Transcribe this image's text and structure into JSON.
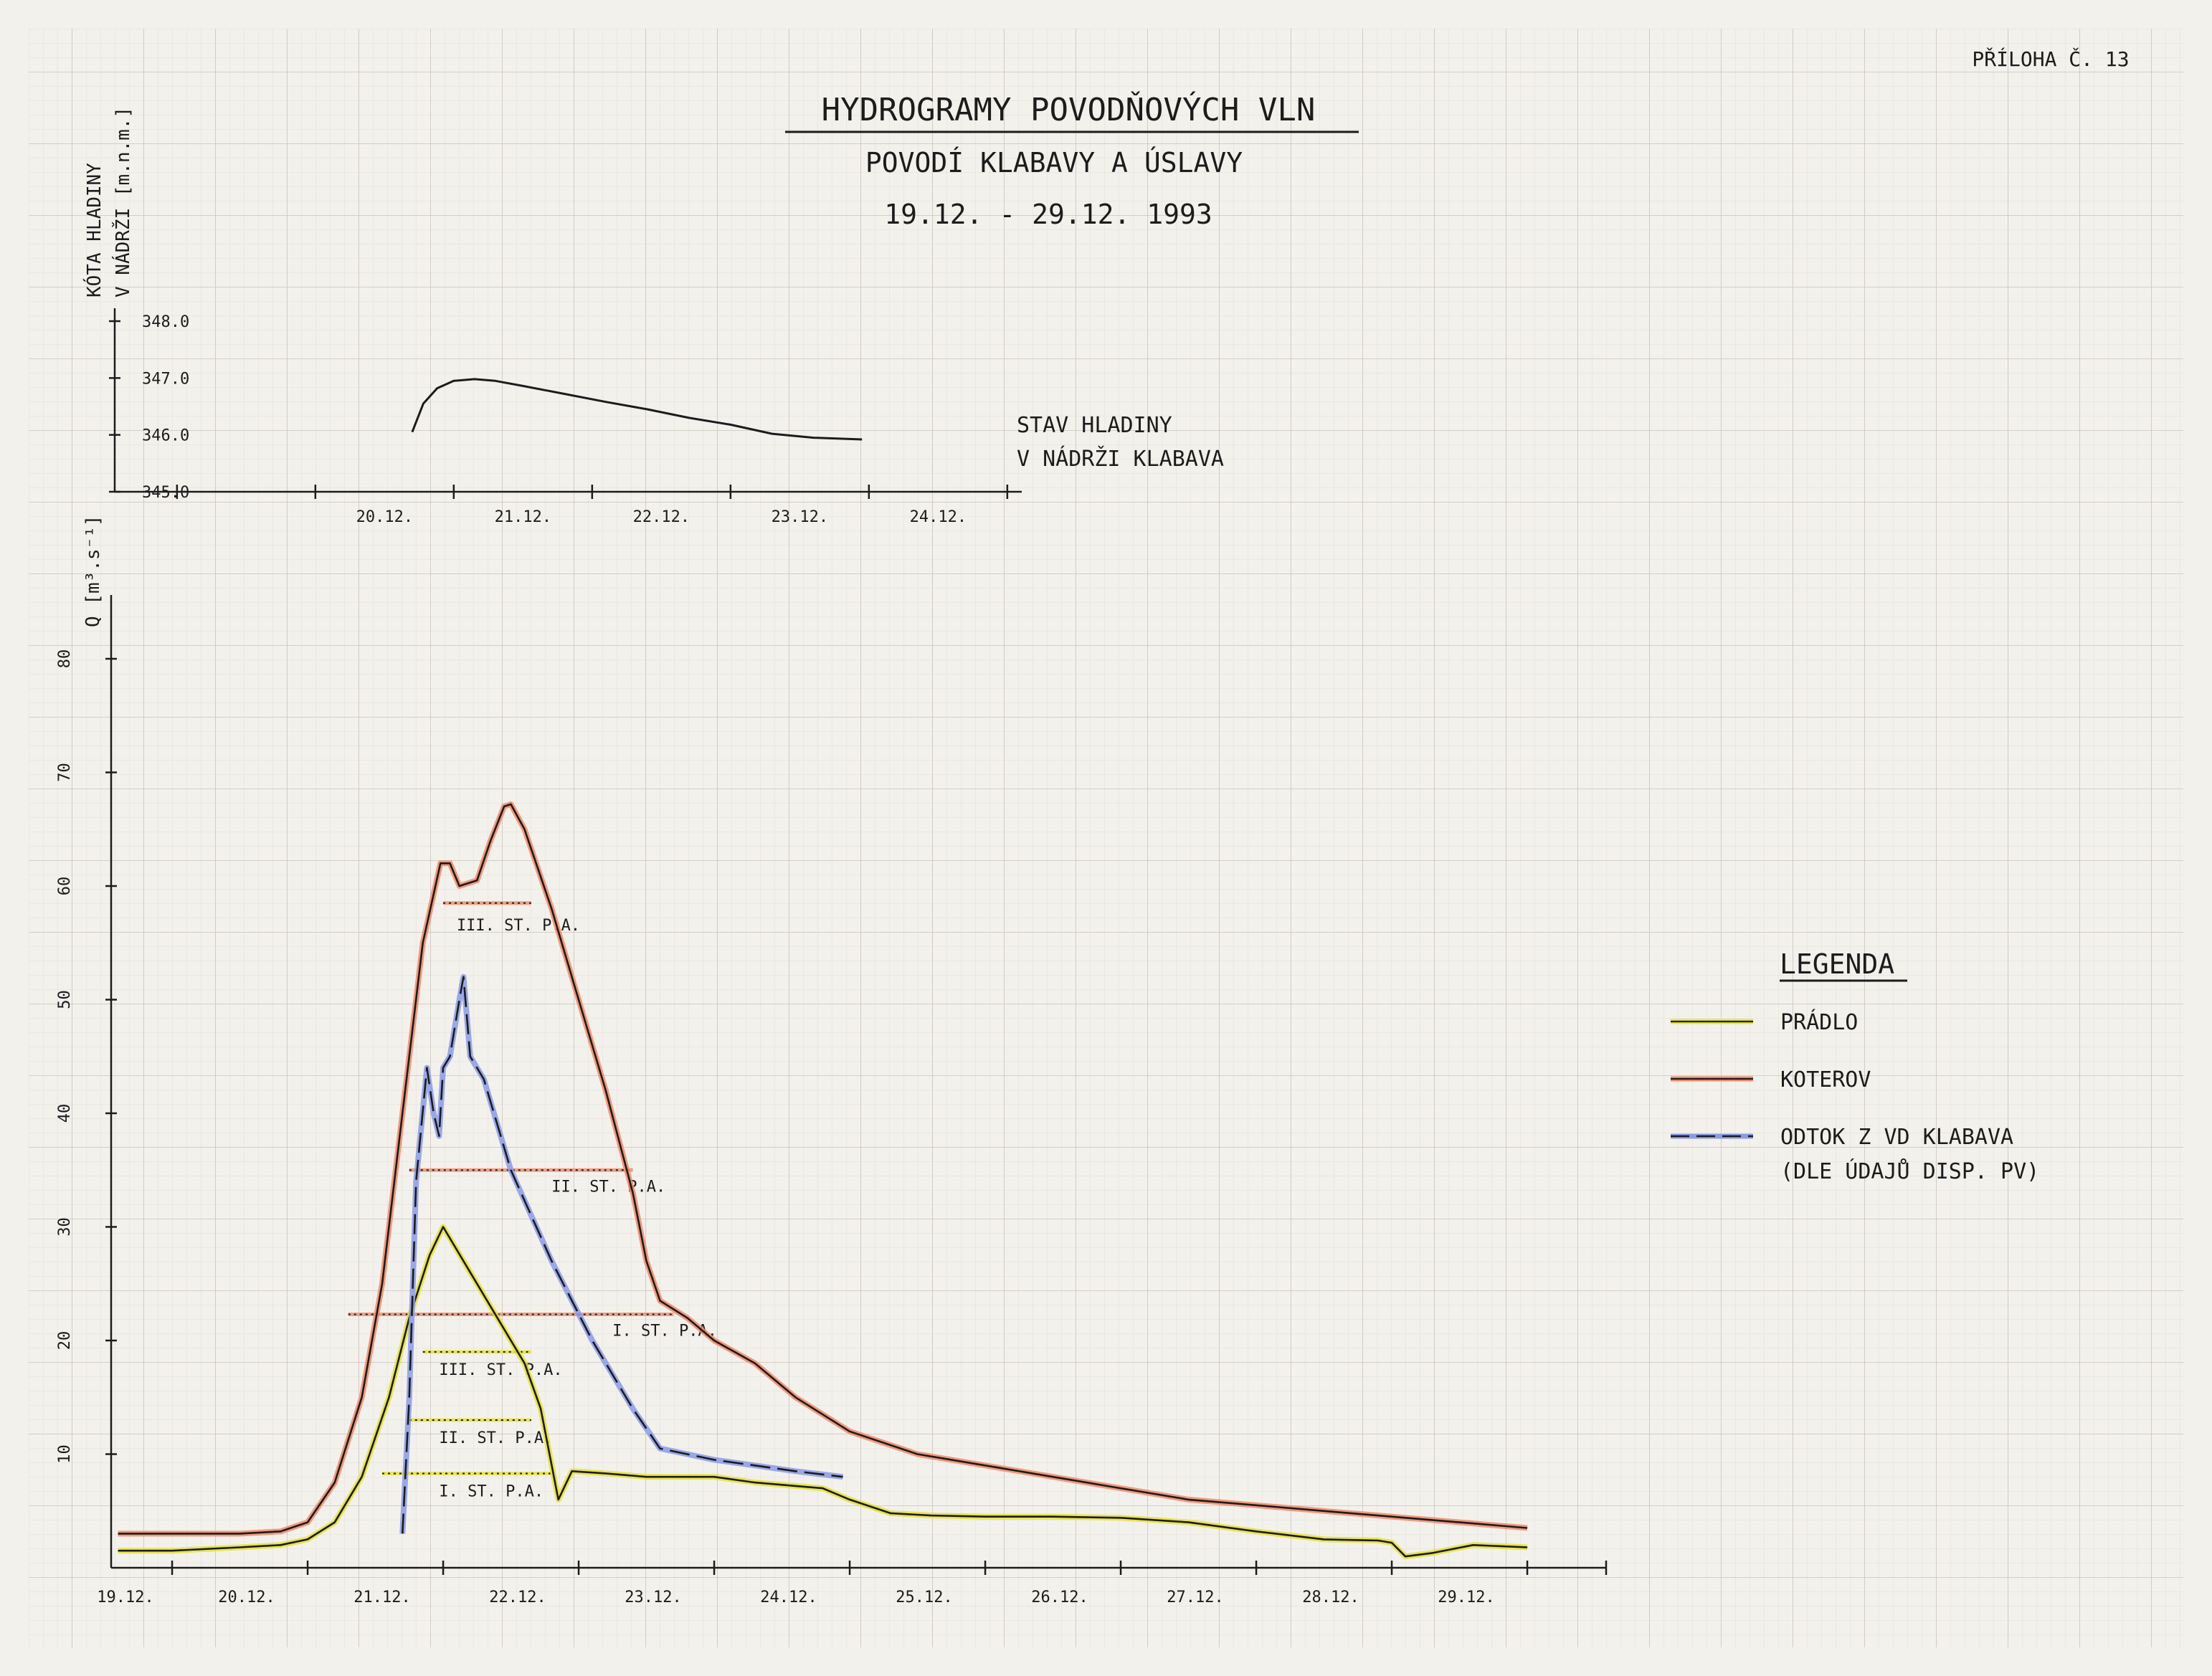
{
  "annex_label": "PŘÍLOHA Č. 13",
  "title": "HYDROGRAMY POVODŇOVÝCH VLN",
  "subtitle": "POVODÍ KLABAVY A ÚSLAVY",
  "date_range": "19.12. - 29.12. 1993",
  "colors": {
    "paper": "#f3f1ec",
    "grid_minor": "#dedad2",
    "grid_major": "#c9c4ba",
    "ink": "#1c1c1c",
    "pradlo": "#e4e23a",
    "koterov": "#f08a6a",
    "klabava": "#8a9be8"
  },
  "chart_data": [
    {
      "type": "line",
      "title": "",
      "ylabel_line1": "KÓTA HLADINY",
      "ylabel_line2": "V NÁDRŽI [m.n.m.]",
      "series_label_line1": "STAV HLADINY",
      "series_label_line2": "V NÁDRŽI KLABAVA",
      "ylim": [
        345.0,
        348.0
      ],
      "yticks": [
        "345.0",
        "346.0",
        "347.0",
        "348.0"
      ],
      "xlim": [
        19.0,
        24.7
      ],
      "xticks": [
        "20.12.",
        "21.12.",
        "22.12.",
        "23.12.",
        "24.12."
      ],
      "grid": true,
      "series": [
        {
          "x": [
            20.7,
            20.78,
            20.88,
            21.0,
            21.15,
            21.3,
            21.5,
            21.8,
            22.1,
            22.4,
            22.7,
            23.0,
            23.3,
            23.6,
            23.95
          ],
          "y": [
            346.05,
            346.55,
            346.82,
            346.95,
            346.98,
            346.95,
            346.86,
            346.72,
            346.58,
            346.45,
            346.3,
            346.18,
            346.02,
            345.95,
            345.92
          ]
        }
      ]
    },
    {
      "type": "line",
      "title": "",
      "ylabel": "Q [m³.s⁻¹]",
      "ylim": [
        0,
        85
      ],
      "yticks": [
        "10",
        "20",
        "30",
        "40",
        "50",
        "60",
        "70",
        "80"
      ],
      "xlim": [
        18.6,
        29.0
      ],
      "xticks": [
        "19.12.",
        "20.12.",
        "21.12.",
        "22.12.",
        "23.12.",
        "24.12.",
        "25.12.",
        "26.12.",
        "27.12.",
        "28.12.",
        "29.12."
      ],
      "grid": true,
      "legend_title": "LEGENDA",
      "legend_placement": "right",
      "series": [
        {
          "name": "PRÁDLO",
          "x": [
            18.6,
            19.0,
            19.5,
            19.8,
            20.0,
            20.2,
            20.4,
            20.6,
            20.75,
            20.9,
            21.0,
            21.2,
            21.4,
            21.6,
            21.72,
            21.85,
            21.95,
            22.2,
            22.5,
            22.8,
            23.0,
            23.3,
            23.6,
            23.8,
            24.0,
            24.3,
            24.6,
            25.0,
            25.5,
            26.0,
            26.5,
            27.0,
            27.5,
            27.9,
            28.0,
            28.1,
            28.3,
            28.6,
            29.0
          ],
          "y": [
            1.5,
            1.5,
            1.8,
            2.0,
            2.5,
            4.0,
            8.0,
            15.0,
            22.0,
            27.5,
            30.0,
            26.0,
            22.0,
            18.0,
            14.0,
            6.0,
            8.5,
            8.3,
            8.0,
            8.0,
            8.0,
            7.5,
            7.2,
            7.0,
            6.0,
            4.8,
            4.6,
            4.5,
            4.5,
            4.4,
            4.0,
            3.2,
            2.5,
            2.4,
            2.2,
            1.0,
            1.3,
            2.0,
            1.8
          ]
        },
        {
          "name": "KOTEROV",
          "x": [
            18.6,
            19.0,
            19.5,
            19.8,
            20.0,
            20.2,
            20.4,
            20.55,
            20.7,
            20.85,
            20.98,
            21.05,
            21.12,
            21.25,
            21.35,
            21.45,
            21.5,
            21.6,
            21.8,
            22.0,
            22.2,
            22.4,
            22.5,
            22.6,
            22.8,
            23.0,
            23.3,
            23.6,
            24.0,
            24.5,
            25.0,
            25.5,
            26.0,
            26.5,
            27.0,
            27.5,
            28.0,
            28.5,
            29.0
          ],
          "y": [
            3.0,
            3.0,
            3.0,
            3.2,
            4.0,
            7.5,
            15.0,
            25.0,
            40.0,
            55.0,
            62.0,
            62.0,
            60.0,
            60.5,
            64.0,
            67.0,
            67.2,
            65.0,
            58.0,
            50.0,
            42.0,
            33.0,
            27.0,
            23.5,
            22.0,
            20.0,
            18.0,
            15.0,
            12.0,
            10.0,
            9.0,
            8.0,
            7.0,
            6.0,
            5.5,
            5.0,
            4.5,
            4.0,
            3.5
          ]
        },
        {
          "name": "ODTOK Z VD KLABAVA",
          "name_line2": "(DLE ÚDAJŮ DISP. PV)",
          "x": [
            20.7,
            20.75,
            20.8,
            20.88,
            20.93,
            20.97,
            21.0,
            21.05,
            21.12,
            21.15,
            21.2,
            21.3,
            21.5,
            21.8,
            22.1,
            22.4,
            22.6,
            22.8,
            23.0,
            23.3,
            23.6,
            23.95
          ],
          "y": [
            3.0,
            15.0,
            34.0,
            44.0,
            40.0,
            38.0,
            44.0,
            45.0,
            50.0,
            52.0,
            45.0,
            43.0,
            35.0,
            27.0,
            20.0,
            14.0,
            10.5,
            10.0,
            9.5,
            9.0,
            8.5,
            8.0
          ]
        }
      ],
      "thresholds": [
        {
          "label": "III. ST. P.A.",
          "station": "KOTEROV",
          "value": 58.5,
          "x_from": 21.0,
          "x_to": 21.65
        },
        {
          "label": "II. ST. P.A.",
          "station": "KOTEROV",
          "value": 35.0,
          "x_from": 20.75,
          "x_to": 22.4
        },
        {
          "label": "I. ST. P.A.",
          "station": "KOTEROV",
          "value": 22.3,
          "x_from": 20.3,
          "x_to": 22.7
        },
        {
          "label": "III. ST. P.A.",
          "station": "PRÁDLO",
          "value": 19.0,
          "x_from": 20.85,
          "x_to": 21.65
        },
        {
          "label": "II. ST. P.A.",
          "station": "PRÁDLO",
          "value": 13.0,
          "x_from": 20.75,
          "x_to": 21.65
        },
        {
          "label": "I. ST. P.A.",
          "station": "PRÁDLO",
          "value": 8.3,
          "x_from": 20.55,
          "x_to": 21.8
        }
      ]
    }
  ]
}
